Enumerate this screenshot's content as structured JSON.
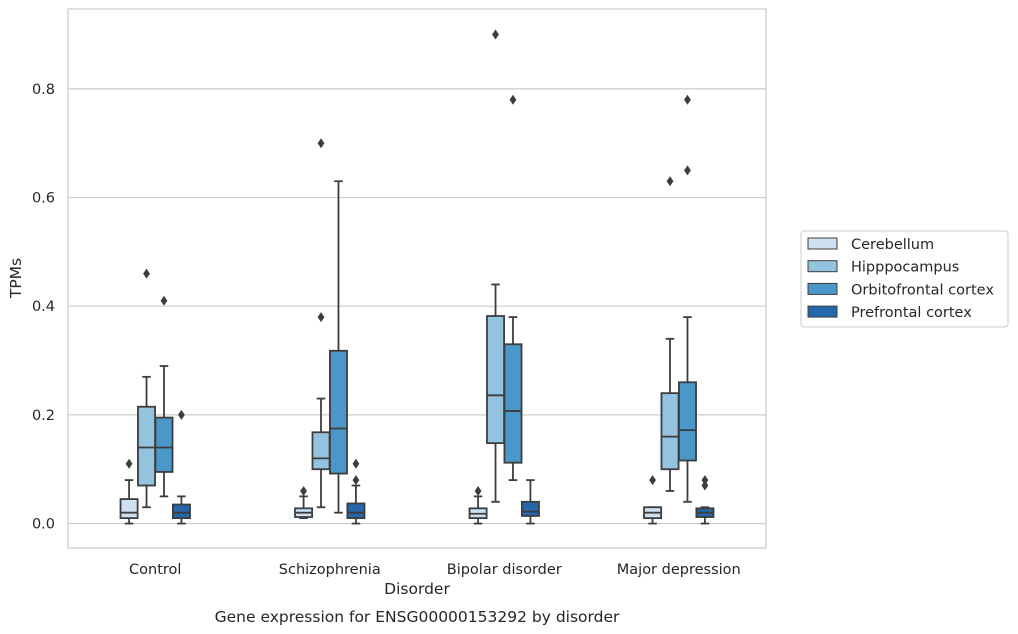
{
  "caption": "Gene expression for ENSG00000153292 by disorder",
  "chart_data": {
    "type": "box",
    "xlabel": "Disorder",
    "ylabel": "TPMs",
    "categories": [
      "Control",
      "Schizophrenia",
      "Bipolar disorder",
      "Major depression"
    ],
    "ylim": [
      -0.045,
      0.947
    ],
    "yticks": [
      0.0,
      0.2,
      0.4,
      0.6,
      0.8
    ],
    "ytick_labels": [
      "0.0",
      "0.2",
      "0.4",
      "0.6",
      "0.8"
    ],
    "grid": "horizontal",
    "legend_position": "right",
    "hues": [
      {
        "name": "Cerebellum",
        "color": "#cfe1f1"
      },
      {
        "name": "Hipppocampus",
        "color": "#93c3df"
      },
      {
        "name": "Orbitofrontal cortex",
        "color": "#4a98c9"
      },
      {
        "name": "Prefrontal cortex",
        "color": "#2567ad"
      }
    ],
    "boxes": [
      [
        {
          "whisker_low": 0.0,
          "q1": 0.01,
          "median": 0.02,
          "q3": 0.045,
          "whisker_high": 0.08,
          "outliers": [
            0.11
          ]
        },
        {
          "whisker_low": 0.03,
          "q1": 0.07,
          "median": 0.14,
          "q3": 0.215,
          "whisker_high": 0.27,
          "outliers": [
            0.46
          ]
        },
        {
          "whisker_low": 0.05,
          "q1": 0.095,
          "median": 0.14,
          "q3": 0.195,
          "whisker_high": 0.29,
          "outliers": [
            0.41
          ]
        },
        {
          "whisker_low": 0.0,
          "q1": 0.01,
          "median": 0.02,
          "q3": 0.035,
          "whisker_high": 0.05,
          "outliers": [
            0.2
          ]
        }
      ],
      [
        {
          "whisker_low": 0.01,
          "q1": 0.012,
          "median": 0.02,
          "q3": 0.028,
          "whisker_high": 0.05,
          "outliers": [
            0.06
          ]
        },
        {
          "whisker_low": 0.03,
          "q1": 0.1,
          "median": 0.12,
          "q3": 0.168,
          "whisker_high": 0.23,
          "outliers": [
            0.38,
            0.7
          ]
        },
        {
          "whisker_low": 0.02,
          "q1": 0.092,
          "median": 0.175,
          "q3": 0.318,
          "whisker_high": 0.63,
          "outliers": []
        },
        {
          "whisker_low": 0.0,
          "q1": 0.01,
          "median": 0.02,
          "q3": 0.037,
          "whisker_high": 0.07,
          "outliers": [
            0.08,
            0.11
          ]
        }
      ],
      [
        {
          "whisker_low": 0.0,
          "q1": 0.01,
          "median": 0.018,
          "q3": 0.028,
          "whisker_high": 0.05,
          "outliers": [
            0.06
          ]
        },
        {
          "whisker_low": 0.04,
          "q1": 0.148,
          "median": 0.236,
          "q3": 0.382,
          "whisker_high": 0.44,
          "outliers": [
            0.9
          ]
        },
        {
          "whisker_low": 0.08,
          "q1": 0.112,
          "median": 0.207,
          "q3": 0.33,
          "whisker_high": 0.38,
          "outliers": [
            0.78
          ]
        },
        {
          "whisker_low": 0.0,
          "q1": 0.014,
          "median": 0.022,
          "q3": 0.04,
          "whisker_high": 0.08,
          "outliers": []
        }
      ],
      [
        {
          "whisker_low": 0.0,
          "q1": 0.01,
          "median": 0.02,
          "q3": 0.03,
          "whisker_high": 0.03,
          "outliers": [
            0.08
          ]
        },
        {
          "whisker_low": 0.06,
          "q1": 0.1,
          "median": 0.16,
          "q3": 0.24,
          "whisker_high": 0.34,
          "outliers": [
            0.63
          ]
        },
        {
          "whisker_low": 0.04,
          "q1": 0.116,
          "median": 0.172,
          "q3": 0.26,
          "whisker_high": 0.38,
          "outliers": [
            0.65,
            0.78
          ]
        },
        {
          "whisker_low": 0.0,
          "q1": 0.012,
          "median": 0.02,
          "q3": 0.028,
          "whisker_high": 0.03,
          "outliers": [
            0.07,
            0.08
          ]
        }
      ]
    ]
  }
}
